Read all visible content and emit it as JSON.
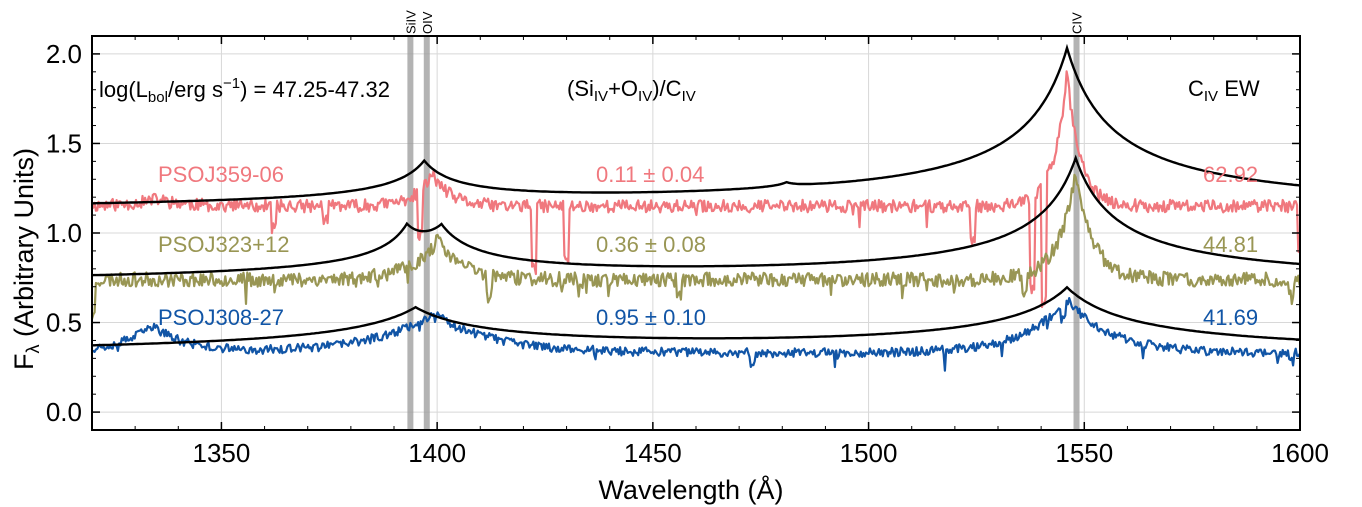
{
  "chart_data": {
    "type": "line",
    "title": "",
    "xlabel": "Wavelength (Å)",
    "ylabel_main": "F",
    "ylabel_sub": "λ",
    "ylabel_rest": " (Arbitrary Units)",
    "xlim": [
      1320,
      1600
    ],
    "ylim": [
      -0.1,
      2.1
    ],
    "xticks": [
      1350,
      1400,
      1450,
      1500,
      1550,
      1600
    ],
    "yticks": [
      0.0,
      0.5,
      1.0,
      1.5,
      2.0
    ],
    "xtick_labels": [
      "1350",
      "1400",
      "1450",
      "1500",
      "1550",
      "1600"
    ],
    "ytick_labels": [
      "0.0",
      "0.5",
      "1.0",
      "1.5",
      "2.0"
    ],
    "grid": true,
    "emission_lines": [
      {
        "label": "SiIV",
        "x": 1393.8
      },
      {
        "label": "OIV",
        "x": 1397.6
      },
      {
        "label": "CIV",
        "x": 1548.2
      }
    ],
    "header": {
      "lbol": "log(L",
      "lbol_sub": "bol",
      "lbol_mid": "/erg s",
      "lbol_sup": "−1",
      "lbol_end": ") = 47.25-47.32",
      "ratio_open": "(Si",
      "ratio_si_sub": "IV",
      "ratio_plus": "+O",
      "ratio_o_sub": "IV",
      "ratio_mid": ")/C",
      "ratio_c_sub": "IV",
      "ew_main": "C",
      "ew_sub": "IV",
      "ew_end": " EW"
    },
    "series": [
      {
        "name": "PSOJ359-06",
        "color": "#f0787e",
        "ratio": "0.11 ± 0.04",
        "ew": "62.92",
        "continuum": 1.15,
        "noise": 0.035,
        "seed": 11,
        "features": [
          {
            "center": 1335,
            "amp": 0.04,
            "width": 6
          },
          {
            "center": 1399,
            "amp": 0.18,
            "width": 4
          },
          {
            "center": 1546,
            "amp": 0.75,
            "width": 3
          }
        ],
        "absorptions": [
          {
            "center": 1362,
            "depth": 0.12
          },
          {
            "center": 1374,
            "depth": 0.08
          },
          {
            "center": 1396,
            "depth": 0.25
          },
          {
            "center": 1422.5,
            "depth": 0.35
          },
          {
            "center": 1430,
            "depth": 0.3
          },
          {
            "center": 1524,
            "depth": 0.2
          },
          {
            "center": 1538,
            "depth": 0.5
          },
          {
            "center": 1540.5,
            "depth": 0.65
          },
          {
            "center": 1600,
            "depth": 0.25
          }
        ],
        "model": {
          "base": 1.1,
          "peaks": [
            {
              "center": 1397,
              "amp": 0.24,
              "gamma": 8
            },
            {
              "center": 1481,
              "amp": 0.03,
              "gamma": 3
            },
            {
              "center": 1546,
              "amp": 0.92,
              "gamma": 11
            }
          ]
        }
      },
      {
        "name": "PSOJ323+12",
        "color": "#999654",
        "ratio": "0.36 ± 0.08",
        "ew": "44.81",
        "continuum": 0.74,
        "noise": 0.04,
        "seed": 23,
        "features": [
          {
            "center": 1400,
            "amp": 0.22,
            "width": 6
          },
          {
            "center": 1548,
            "amp": 0.6,
            "width": 4
          }
        ],
        "absorptions": [
          {
            "center": 1320,
            "depth": 0.2
          },
          {
            "center": 1412,
            "depth": 0.12
          },
          {
            "center": 1456,
            "depth": 0.1
          },
          {
            "center": 1536,
            "depth": 0.12
          },
          {
            "center": 1598,
            "depth": 0.1
          }
        ],
        "model": {
          "base": 0.7,
          "peaks": [
            {
              "center": 1393,
              "amp": 0.2,
              "gamma": 6
            },
            {
              "center": 1401,
              "amp": 0.22,
              "gamma": 8
            },
            {
              "center": 1548,
              "amp": 0.7,
              "gamma": 10
            }
          ]
        }
      },
      {
        "name": "PSOJ308-27",
        "color": "#1155a6",
        "ratio": "0.95 ± 0.10",
        "ew": "41.69",
        "continuum": 0.33,
        "noise": 0.025,
        "seed": 37,
        "features": [
          {
            "center": 1334,
            "amp": 0.15,
            "width": 8
          },
          {
            "center": 1399,
            "amp": 0.22,
            "width": 14
          },
          {
            "center": 1546,
            "amp": 0.3,
            "width": 10
          }
        ],
        "absorptions": [
          {
            "center": 1473,
            "depth": 0.06
          },
          {
            "center": 1545,
            "depth": 0.08
          },
          {
            "center": 1598,
            "depth": 0.05
          }
        ],
        "model": {
          "base": 0.3,
          "peaks": [
            {
              "center": 1395,
              "amp": 0.25,
              "gamma": 18
            },
            {
              "center": 1546,
              "amp": 0.37,
              "gamma": 16
            }
          ]
        }
      }
    ]
  }
}
